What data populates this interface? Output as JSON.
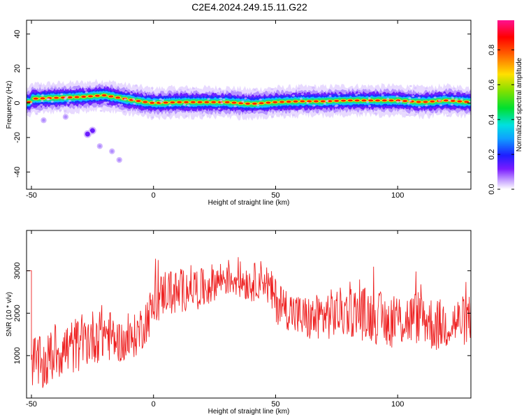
{
  "title": "C2E4.2024.249.15.11.G22",
  "colors": {
    "snr_line": "#ee2222",
    "axis": "#000000",
    "background": "#ffffff"
  },
  "chart_data": [
    {
      "type": "heatmap",
      "xlabel": "Height of straight line (km)",
      "ylabel": "Frequency (Hz)",
      "xlim": [
        -52,
        130
      ],
      "ylim": [
        -50,
        48
      ],
      "x_ticks": [
        -50,
        0,
        50,
        100
      ],
      "y_ticks": [
        -40,
        -20,
        0,
        20,
        40
      ],
      "grid": false,
      "colorbar": {
        "label": "Normalized spectral amplitude",
        "range": [
          0,
          0.97
        ],
        "ticks": [
          0.0,
          0.2,
          0.4,
          0.6,
          0.8
        ],
        "colormap": "rainbow-white-to-magenta"
      },
      "ridge": {
        "description_points_x": [
          -50,
          -40,
          -30,
          -20,
          -10,
          -3,
          0,
          10,
          20,
          30,
          40,
          50,
          60,
          70,
          80,
          90,
          100,
          110,
          120,
          130
        ],
        "description_points_y": [
          2.5,
          3,
          3.5,
          4.5,
          2,
          0.5,
          0,
          0.5,
          0.5,
          0.5,
          -0.5,
          0.5,
          1,
          1,
          1.5,
          1.5,
          1.5,
          0.5,
          1.5,
          0.5
        ]
      },
      "outliers": [
        [
          -25,
          -16
        ],
        [
          -27,
          -18
        ],
        [
          -22,
          -25
        ],
        [
          -17,
          -28
        ],
        [
          -14,
          -33
        ],
        [
          -36,
          -8
        ],
        [
          -45,
          -10
        ]
      ]
    },
    {
      "type": "line",
      "xlabel": "Height of straight line (km)",
      "ylabel": "SNR (10 * v/v)",
      "xlim": [
        -52,
        130
      ],
      "ylim": [
        0,
        3950
      ],
      "x_ticks": [
        -50,
        0,
        50,
        100
      ],
      "y_ticks": [
        1000,
        2000,
        3000
      ],
      "grid": false,
      "series": [
        {
          "x": [
            -52,
            -50,
            -45,
            -40,
            -35,
            -30,
            -25,
            -20,
            -15,
            -10,
            -5,
            0,
            5,
            10,
            15,
            20,
            25,
            30,
            35,
            40,
            45,
            50,
            55,
            60,
            65,
            70,
            75,
            80,
            85,
            90,
            95,
            100,
            105,
            110,
            115,
            120,
            125,
            130
          ],
          "y": [
            3000,
            900,
            750,
            1100,
            1150,
            1300,
            1450,
            1550,
            1350,
            1300,
            1650,
            2150,
            2550,
            2450,
            2650,
            2550,
            2750,
            2850,
            2800,
            2700,
            2850,
            2300,
            2100,
            1900,
            1850,
            1950,
            2000,
            2050,
            2000,
            1950,
            1800,
            1850,
            1850,
            1950,
            1700,
            1750,
            1800,
            1850
          ],
          "noise_amplitude": [
            0,
            650,
            650,
            650,
            700,
            650,
            650,
            700,
            500,
            500,
            550,
            550,
            550,
            550,
            500,
            500,
            450,
            450,
            450,
            450,
            450,
            550,
            500,
            550,
            550,
            600,
            600,
            600,
            650,
            650,
            650,
            650,
            650,
            650,
            650,
            600,
            600,
            600
          ]
        }
      ]
    }
  ]
}
